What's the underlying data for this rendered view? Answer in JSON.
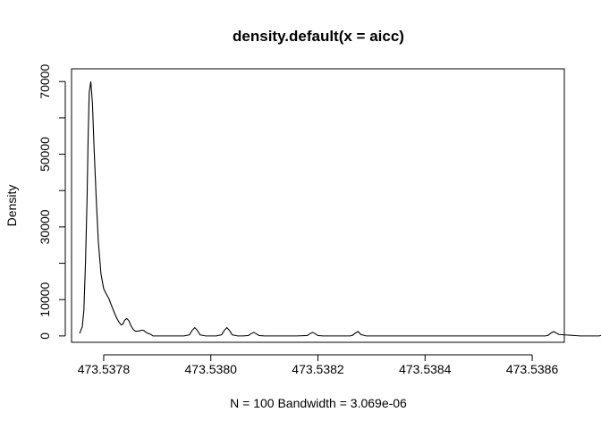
{
  "chart_data": {
    "type": "line",
    "title": "density.default(x = aicc)",
    "xlabel": "N = 100   Bandwidth = 3.069e-06",
    "ylabel": "Density",
    "xlim": [
      473.53774,
      473.53866
    ],
    "ylim": [
      -1750,
      73500
    ],
    "x_ticks": [
      473.5378,
      473.538,
      473.5382,
      473.5384,
      473.5386
    ],
    "x_tick_labels": [
      "473.5378",
      "473.5380",
      "473.5382",
      "473.5384",
      "473.5386"
    ],
    "y_ticks": [
      0,
      10000,
      20000,
      30000,
      40000,
      50000,
      60000,
      70000
    ],
    "y_tick_labels": [
      "0",
      "10000",
      "",
      "30000",
      "",
      "50000",
      "",
      "70000"
    ],
    "grid": false,
    "legend": "none",
    "line_color": "#000000",
    "series": [
      {
        "x": [
          473.537755,
          473.53776,
          473.537763,
          473.537766,
          473.537769,
          473.537771,
          473.537773,
          473.537776,
          473.537779,
          473.537782,
          473.537786,
          473.53779,
          473.537795,
          473.5378,
          473.537805,
          473.53781,
          473.537813,
          473.537817,
          473.537821,
          473.537825,
          473.537829,
          473.537833,
          473.537836,
          473.537839,
          473.537843,
          473.537847,
          473.537851,
          473.537855,
          473.537859,
          473.537863,
          473.537867,
          473.537871,
          473.537875,
          473.537879,
          473.537883,
          473.537887,
          473.537892,
          473.5379,
          473.53792,
          473.53795,
          473.53796,
          473.537965,
          473.53797,
          473.537975,
          473.53798,
          473.53799,
          473.538,
          473.53801,
          473.53802,
          473.538025,
          473.53803,
          473.538035,
          473.53804,
          473.53805,
          473.53806,
          473.53807,
          473.538075,
          473.53808,
          473.538085,
          473.53809,
          473.5381,
          473.53811,
          473.53812,
          473.53816,
          473.53818,
          473.538185,
          473.53819,
          473.538195,
          473.5382,
          473.53821,
          473.53824,
          473.53826,
          473.538265,
          473.53827,
          473.538275,
          473.53828,
          473.53829,
          473.5386,
          473.538625,
          473.53863,
          473.538635,
          473.53864,
          473.53865,
          473.53869,
          473.53872,
          473.538725,
          473.53873,
          473.538735,
          473.53874,
          473.53875,
          473.53876
        ],
        "y": [
          700,
          2500,
          7000,
          20000,
          38000,
          55000,
          67000,
          70000,
          64000,
          52000,
          38000,
          26000,
          17000,
          13000,
          11500,
          10200,
          9000,
          7500,
          6000,
          4700,
          3700,
          3000,
          3300,
          4300,
          4800,
          4200,
          2800,
          1800,
          1300,
          1300,
          1400,
          1600,
          1500,
          1000,
          700,
          500,
          0,
          0,
          0,
          0,
          300,
          1500,
          2300,
          1500,
          300,
          0,
          0,
          0,
          300,
          1500,
          2300,
          1500,
          300,
          0,
          0,
          100,
          600,
          1000,
          600,
          100,
          0,
          0,
          0,
          0,
          100,
          600,
          1000,
          600,
          100,
          0,
          0,
          0,
          200,
          800,
          1200,
          400,
          0,
          0,
          0,
          200,
          800,
          1200,
          400,
          0,
          0,
          0,
          200,
          800,
          1200,
          400,
          0
        ]
      }
    ]
  }
}
